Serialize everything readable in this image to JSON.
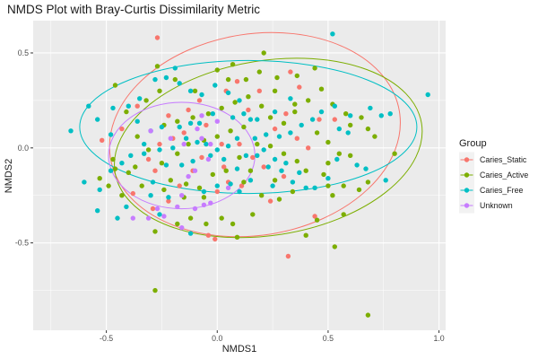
{
  "chart_data": {
    "type": "scatter",
    "title": "NMDS Plot with Bray-Curtis Dissimilarity Metric",
    "xlabel": "NMDS1",
    "ylabel": "NMDS2",
    "xlim": [
      -0.83,
      1.03
    ],
    "ylim": [
      -0.96,
      0.67
    ],
    "x_ticks": [
      -0.5,
      0.0,
      0.5,
      1.0
    ],
    "x_tick_labels": [
      "-0.5",
      "0.0",
      "0.5",
      "1.0"
    ],
    "y_ticks": [
      -0.5,
      0.0,
      0.5
    ],
    "y_tick_labels": [
      "-0.5",
      "0.0",
      "0.5"
    ],
    "grid": true,
    "legend": {
      "title": "Group",
      "position": "right"
    },
    "series": [
      {
        "name": "Caries_Static",
        "color": "#F8766D",
        "points": [
          [
            -0.27,
            0.58
          ],
          [
            -0.22,
            0.17
          ],
          [
            -0.36,
            0.22
          ],
          [
            -0.08,
            0.25
          ],
          [
            -0.05,
            0.12
          ],
          [
            0.04,
            0.3
          ],
          [
            0.09,
            0.35
          ],
          [
            0.14,
            0.2
          ],
          [
            -0.15,
            0.08
          ],
          [
            -0.2,
            0.05
          ],
          [
            -0.26,
            0.02
          ],
          [
            -0.31,
            -0.06
          ],
          [
            -0.52,
            0.04
          ],
          [
            -0.43,
            0.1
          ],
          [
            -0.07,
            -0.05
          ],
          [
            0.03,
            -0.1
          ],
          [
            -0.11,
            -0.12
          ],
          [
            -0.17,
            -0.2
          ],
          [
            -0.22,
            -0.28
          ],
          [
            -0.29,
            -0.32
          ],
          [
            0.0,
            -0.23
          ],
          [
            0.05,
            -0.18
          ],
          [
            0.11,
            -0.2
          ],
          [
            0.16,
            -0.05
          ],
          [
            0.21,
            -0.1
          ],
          [
            0.26,
            0.1
          ],
          [
            0.31,
            0.18
          ],
          [
            0.36,
            0.05
          ],
          [
            0.41,
            0.0
          ],
          [
            0.46,
            0.15
          ],
          [
            0.3,
            -0.15
          ],
          [
            0.24,
            -0.28
          ],
          [
            -0.04,
            -0.46
          ],
          [
            -0.01,
            -0.48
          ],
          [
            0.32,
            -0.57
          ],
          [
            0.44,
            -0.36
          ],
          [
            -0.38,
            -0.24
          ],
          [
            0.02,
            0.02
          ],
          [
            -0.13,
            0.2
          ],
          [
            0.19,
            0.3
          ],
          [
            0.37,
            0.32
          ],
          [
            0.33,
            0.4
          ],
          [
            0.53,
            0.15
          ],
          [
            -0.28,
            -0.12
          ],
          [
            0.1,
            0.02
          ]
        ]
      },
      {
        "name": "Caries_Active",
        "color": "#7CAE00",
        "points": [
          [
            -0.46,
            0.33
          ],
          [
            -0.27,
            0.43
          ],
          [
            0.0,
            0.41
          ],
          [
            0.07,
            0.44
          ],
          [
            0.19,
            0.4
          ],
          [
            0.27,
            0.37
          ],
          [
            0.36,
            0.38
          ],
          [
            0.47,
            0.31
          ],
          [
            0.52,
            0.23
          ],
          [
            0.58,
            0.18
          ],
          [
            0.6,
            0.12
          ],
          [
            0.68,
            0.1
          ],
          [
            0.71,
            0.06
          ],
          [
            0.8,
            -0.03
          ],
          [
            0.55,
            -0.03
          ],
          [
            0.5,
            -0.08
          ],
          [
            0.48,
            -0.14
          ],
          [
            0.5,
            -0.2
          ],
          [
            0.52,
            -0.25
          ],
          [
            0.57,
            -0.2
          ],
          [
            0.64,
            -0.22
          ],
          [
            0.68,
            -0.18
          ],
          [
            0.57,
            -0.35
          ],
          [
            0.45,
            -0.38
          ],
          [
            0.4,
            -0.46
          ],
          [
            0.53,
            -0.52
          ],
          [
            0.68,
            -0.88
          ],
          [
            -0.28,
            -0.75
          ],
          [
            -0.28,
            -0.44
          ],
          [
            -0.18,
            -0.4
          ],
          [
            -0.12,
            -0.37
          ],
          [
            -0.05,
            -0.4
          ],
          [
            0.09,
            -0.47
          ],
          [
            0.07,
            -0.4
          ],
          [
            0.02,
            -0.37
          ],
          [
            -0.34,
            -0.2
          ],
          [
            -0.4,
            -0.13
          ],
          [
            -0.47,
            -0.06
          ],
          [
            -0.53,
            -0.16
          ],
          [
            -0.49,
            -0.2
          ],
          [
            -0.37,
            -0.1
          ],
          [
            -0.31,
            -0.01
          ],
          [
            -0.25,
            -0.08
          ],
          [
            -0.18,
            -0.03
          ],
          [
            -0.13,
            0.02
          ],
          [
            -0.06,
            0.04
          ],
          [
            0.0,
            0.06
          ],
          [
            0.06,
            0.09
          ],
          [
            0.12,
            0.11
          ],
          [
            0.18,
            0.02
          ],
          [
            0.24,
            0.01
          ],
          [
            0.3,
            -0.03
          ],
          [
            0.36,
            -0.07
          ],
          [
            0.4,
            -0.12
          ],
          [
            0.34,
            -0.23
          ],
          [
            0.28,
            -0.27
          ],
          [
            0.2,
            -0.25
          ],
          [
            -0.21,
            -0.17
          ],
          [
            -0.14,
            -0.19
          ],
          [
            -0.08,
            -0.21
          ],
          [
            -0.02,
            -0.14
          ],
          [
            0.04,
            -0.12
          ],
          [
            0.1,
            -0.05
          ],
          [
            0.15,
            -0.12
          ],
          [
            -0.24,
            0.12
          ],
          [
            -0.18,
            0.14
          ],
          [
            -0.11,
            0.16
          ],
          [
            -0.04,
            0.18
          ],
          [
            0.02,
            0.21
          ],
          [
            0.08,
            0.24
          ],
          [
            0.14,
            0.27
          ],
          [
            0.2,
            0.22
          ],
          [
            0.24,
            0.16
          ],
          [
            0.3,
            0.13
          ],
          [
            0.35,
            0.19
          ],
          [
            0.41,
            0.25
          ],
          [
            0.45,
            0.08
          ],
          [
            -0.32,
            0.25
          ],
          [
            -0.26,
            0.3
          ],
          [
            -0.1,
            0.3
          ],
          [
            -0.19,
            0.36
          ],
          [
            0.13,
            0.36
          ],
          [
            0.26,
            0.3
          ],
          [
            0.21,
            0.5
          ],
          [
            0.44,
            0.42
          ],
          [
            -0.41,
            0.19
          ],
          [
            -0.36,
            0.06
          ],
          [
            -0.24,
            -0.22
          ],
          [
            0.16,
            -0.35
          ],
          [
            -0.43,
            -0.25
          ],
          [
            0.6,
            -0.04
          ],
          [
            0.35,
            0.23
          ],
          [
            -0.06,
            -0.26
          ],
          [
            0.26,
            -0.17
          ],
          [
            0.5,
            0.03
          ],
          [
            -0.15,
            -0.26
          ],
          [
            0.05,
            0.36
          ],
          [
            0.65,
            0.16
          ],
          [
            -0.46,
            -0.11
          ],
          [
            0.12,
            -0.18
          ]
        ]
      },
      {
        "name": "Caries_Free",
        "color": "#00BFC4",
        "points": [
          [
            0.52,
            0.6
          ],
          [
            0.95,
            0.28
          ],
          [
            0.78,
            0.18
          ],
          [
            0.74,
            0.17
          ],
          [
            0.55,
            0.1
          ],
          [
            0.59,
            0.08
          ],
          [
            0.6,
            0.17
          ],
          [
            0.53,
            0.22
          ],
          [
            0.47,
            0.19
          ],
          [
            0.43,
            0.15
          ],
          [
            0.38,
            0.12
          ],
          [
            0.33,
            0.08
          ],
          [
            0.28,
            0.06
          ],
          [
            0.22,
            0.07
          ],
          [
            0.17,
            0.05
          ],
          [
            0.09,
            0.05
          ],
          [
            0.05,
            0.01
          ],
          [
            0.0,
            -0.01
          ],
          [
            -0.05,
            0.02
          ],
          [
            -0.09,
            0.03
          ],
          [
            -0.14,
            0.05
          ],
          [
            -0.2,
            0.0
          ],
          [
            -0.26,
            -0.01
          ],
          [
            -0.33,
            0.02
          ],
          [
            -0.39,
            -0.04
          ],
          [
            -0.43,
            -0.08
          ],
          [
            -0.48,
            -0.12
          ],
          [
            -0.53,
            -0.22
          ],
          [
            -0.6,
            -0.18
          ],
          [
            -0.54,
            -0.33
          ],
          [
            -0.48,
            0.07
          ],
          [
            -0.47,
            0.21
          ],
          [
            -0.4,
            0.22
          ],
          [
            -0.35,
            0.26
          ],
          [
            -0.28,
            0.36
          ],
          [
            -0.23,
            0.37
          ],
          [
            -0.19,
            0.42
          ],
          [
            -0.17,
            0.34
          ],
          [
            -0.12,
            0.3
          ],
          [
            -0.07,
            0.28
          ],
          [
            -0.01,
            0.33
          ],
          [
            0.05,
            0.29
          ],
          [
            0.1,
            0.25
          ],
          [
            0.15,
            0.15
          ],
          [
            0.21,
            -0.01
          ],
          [
            0.26,
            -0.06
          ],
          [
            0.31,
            -0.08
          ],
          [
            0.37,
            -0.13
          ],
          [
            0.44,
            -0.21
          ],
          [
            0.5,
            -0.16
          ],
          [
            0.54,
            -0.06
          ],
          [
            0.63,
            -0.09
          ],
          [
            0.67,
            -0.11
          ],
          [
            0.76,
            -0.17
          ],
          [
            -0.45,
            -0.37
          ],
          [
            -0.3,
            -0.25
          ],
          [
            -0.26,
            -0.35
          ],
          [
            -0.22,
            -0.26
          ],
          [
            -0.12,
            -0.45
          ],
          [
            -0.06,
            -0.23
          ],
          [
            0.0,
            -0.2
          ],
          [
            0.06,
            -0.19
          ],
          [
            0.1,
            -0.23
          ],
          [
            0.15,
            -0.17
          ],
          [
            0.25,
            -0.2
          ],
          [
            0.34,
            -0.18
          ],
          [
            0.4,
            -0.21
          ],
          [
            0.29,
            -0.12
          ],
          [
            -0.29,
            -0.18
          ],
          [
            -0.23,
            -0.09
          ],
          [
            -0.16,
            -0.09
          ],
          [
            -0.11,
            -0.07
          ],
          [
            -0.03,
            -0.04
          ],
          [
            0.03,
            -0.06
          ],
          [
            0.09,
            -0.11
          ],
          [
            0.13,
            -0.04
          ],
          [
            0.18,
            -0.04
          ],
          [
            0.23,
            -0.1
          ],
          [
            -0.36,
            0.14
          ],
          [
            -0.3,
            0.09
          ],
          [
            -0.25,
            0.11
          ],
          [
            -0.17,
            0.11
          ],
          [
            -0.12,
            0.13
          ],
          [
            -0.02,
            0.18
          ],
          [
            0.07,
            0.16
          ],
          [
            0.12,
            0.18
          ],
          [
            0.18,
            0.15
          ],
          [
            0.26,
            0.19
          ],
          [
            0.33,
            0.26
          ],
          [
            -0.58,
            0.22
          ],
          [
            -0.66,
            0.09
          ],
          [
            -0.54,
            0.15
          ],
          [
            0.69,
            0.21
          ],
          [
            -0.41,
            -0.31
          ],
          [
            -0.08,
            0.13
          ],
          [
            -0.33,
            -0.03
          ]
        ]
      },
      {
        "name": "Unknown",
        "color": "#C77CFF",
        "points": [
          [
            -0.38,
            -0.37
          ],
          [
            -0.31,
            -0.37
          ],
          [
            -0.27,
            -0.32
          ],
          [
            -0.24,
            -0.36
          ],
          [
            -0.18,
            -0.31
          ],
          [
            -0.1,
            -0.32
          ],
          [
            -0.06,
            -0.3
          ],
          [
            -0.03,
            -0.29
          ],
          [
            0.05,
            -0.21
          ],
          [
            -0.1,
            -0.12
          ],
          [
            -0.13,
            -0.15
          ],
          [
            -0.16,
            -0.25
          ],
          [
            -0.07,
            0.05
          ],
          [
            -0.09,
            0.1
          ],
          [
            -0.07,
            0.17
          ],
          [
            0.0,
            0.14
          ],
          [
            -0.03,
            0.02
          ],
          [
            -0.21,
            0.05
          ],
          [
            -0.04,
            -0.06
          ],
          [
            -0.15,
            0.02
          ],
          [
            -0.3,
            0.09
          ],
          [
            -0.16,
            -0.42
          ]
        ]
      }
    ],
    "ellipses": [
      {
        "group": "Caries_Static",
        "color": "#F8766D",
        "cx": 0.17,
        "cy": 0.07,
        "rx": 0.66,
        "ry": 0.53,
        "angle": -9
      },
      {
        "group": "Caries_Active",
        "color": "#7CAE00",
        "cx": 0.23,
        "cy": 0.0,
        "rx": 0.7,
        "ry": 0.46,
        "angle": -9
      },
      {
        "group": "Caries_Free",
        "color": "#00BFC4",
        "cx": 0.14,
        "cy": 0.11,
        "rx": 0.76,
        "ry": 0.35,
        "angle": 0
      },
      {
        "group": "Unknown",
        "color": "#C77CFF",
        "cx": -0.16,
        "cy": -0.04,
        "rx": 0.33,
        "ry": 0.28,
        "angle": 0
      }
    ]
  }
}
